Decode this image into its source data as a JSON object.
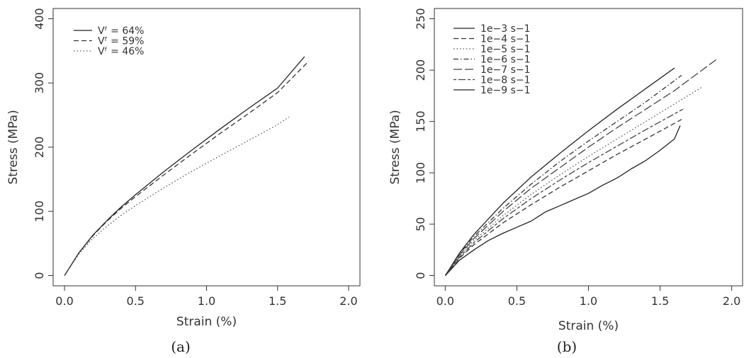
{
  "captions": {
    "a": "(a)",
    "b": "(b)"
  },
  "chart_data": [
    {
      "id": "a",
      "type": "line",
      "xlabel": "Strain (%)",
      "ylabel": "Stress (MPa)",
      "xlim": [
        -0.08,
        2.08
      ],
      "ylim": [
        -16,
        416
      ],
      "xticks": [
        0.0,
        0.5,
        1.0,
        1.5,
        2.0
      ],
      "xticklabels": [
        "0.0",
        "0.5",
        "1.0",
        "1.5",
        "2.0"
      ],
      "yticks": [
        0,
        100,
        200,
        300,
        400
      ],
      "yticklabels": [
        "0",
        "100",
        "200",
        "300",
        "400"
      ],
      "grid": false,
      "legend_position": "top-left",
      "series": [
        {
          "name": "Vᶠ = 64%",
          "dash": "solid",
          "color": "#222222",
          "x": [
            0,
            0.1,
            0.2,
            0.3,
            0.4,
            0.5,
            0.7,
            0.9,
            1.1,
            1.3,
            1.5,
            1.69
          ],
          "y": [
            0,
            35,
            63,
            86,
            107,
            126,
            162,
            196,
            229,
            261,
            292,
            341
          ]
        },
        {
          "name": "Vᶠ = 59%",
          "dash": "dashed",
          "color": "#333333",
          "x": [
            0,
            0.1,
            0.2,
            0.3,
            0.4,
            0.5,
            0.7,
            0.9,
            1.1,
            1.3,
            1.5,
            1.72
          ],
          "y": [
            0,
            35,
            62,
            85,
            105,
            123,
            157,
            190,
            222,
            253,
            285,
            334
          ]
        },
        {
          "name": "Vᶠ = 46%",
          "dash": "dotted",
          "color": "#555555",
          "x": [
            0,
            0.1,
            0.2,
            0.3,
            0.4,
            0.5,
            0.7,
            0.9,
            1.1,
            1.3,
            1.5,
            1.58
          ],
          "y": [
            0,
            33,
            58,
            77,
            94,
            109,
            137,
            163,
            187,
            211,
            235,
            247
          ]
        }
      ]
    },
    {
      "id": "b",
      "type": "line",
      "xlabel": "Strain (%)",
      "ylabel": "Stress (MPa)",
      "xlim": [
        -0.076,
        2.076
      ],
      "ylim": [
        -10,
        260
      ],
      "xticks": [
        0.0,
        0.5,
        1.0,
        1.5,
        2.0
      ],
      "xticklabels": [
        "0.0",
        "0.5",
        "1.0",
        "1.5",
        "2.0"
      ],
      "yticks": [
        0,
        50,
        100,
        150,
        200,
        250
      ],
      "yticklabels": [
        "0",
        "50",
        "100",
        "150",
        "200",
        "250"
      ],
      "grid": false,
      "legend_position": "top-left",
      "series": [
        {
          "name": "1e−3 s−1",
          "dash": "solid",
          "color": "#222222",
          "x": [
            0,
            0.1,
            0.2,
            0.4,
            0.6,
            0.8,
            1.0,
            1.2,
            1.4,
            1.6
          ],
          "y": [
            0,
            22,
            40,
            70,
            96,
            119,
            141,
            162,
            182,
            202
          ]
        },
        {
          "name": "1e−4 s−1",
          "dash": "dashed",
          "color": "#333333",
          "x": [
            0,
            0.1,
            0.2,
            0.4,
            0.6,
            0.8,
            1.0,
            1.2,
            1.4,
            1.65
          ],
          "y": [
            0,
            17,
            30,
            51,
            69,
            86,
            102,
            118,
            133,
            152
          ]
        },
        {
          "name": "1e−5 s−1",
          "dash": "dotted",
          "color": "#555555",
          "x": [
            0,
            0.1,
            0.2,
            0.4,
            0.6,
            0.8,
            1.0,
            1.2,
            1.4,
            1.6,
            1.8
          ],
          "y": [
            0,
            19,
            34,
            58,
            79,
            98,
            116,
            133,
            150,
            167,
            184
          ]
        },
        {
          "name": "1e−6 s−1",
          "dash": "dashdot",
          "color": "#333333",
          "x": [
            0,
            0.1,
            0.2,
            0.4,
            0.6,
            0.8,
            1.0,
            1.2,
            1.4,
            1.65
          ],
          "y": [
            0,
            21,
            38,
            65,
            89,
            111,
            131,
            150,
            169,
            195
          ]
        },
        {
          "name": "1e−7 s−1",
          "dash": "longdash",
          "color": "#444444",
          "x": [
            0,
            0.1,
            0.2,
            0.4,
            0.6,
            0.8,
            1.0,
            1.2,
            1.4,
            1.6,
            1.9
          ],
          "y": [
            0,
            20,
            36,
            62,
            85,
            105,
            125,
            144,
            162,
            180,
            211
          ]
        },
        {
          "name": "1e−8 s−1",
          "dash": "twodash",
          "color": "#444444",
          "x": [
            0,
            0.1,
            0.2,
            0.4,
            0.6,
            0.8,
            1.0,
            1.2,
            1.4,
            1.66
          ],
          "y": [
            0,
            18,
            32,
            55,
            75,
            93,
            110,
            126,
            142,
            162
          ]
        },
        {
          "name": "1e−9 s−1",
          "dash": "solid",
          "color": "#222222",
          "x": [
            0,
            0.1,
            0.2,
            0.3,
            0.4,
            0.5,
            0.6,
            0.7,
            0.8,
            0.9,
            1.0,
            1.1,
            1.2,
            1.3,
            1.4,
            1.5,
            1.6,
            1.64
          ],
          "y": [
            0,
            15,
            25,
            34,
            41,
            47,
            53,
            62,
            68,
            74,
            80,
            88,
            95,
            104,
            112,
            122,
            133,
            146
          ]
        }
      ]
    }
  ]
}
